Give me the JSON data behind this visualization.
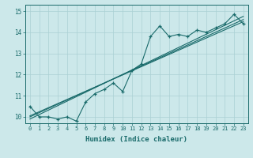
{
  "title": "",
  "xlabel": "Humidex (Indice chaleur)",
  "ylabel": "",
  "xlim": [
    -0.5,
    23.5
  ],
  "ylim": [
    9.7,
    15.3
  ],
  "yticks": [
    10,
    11,
    12,
    13,
    14,
    15
  ],
  "xticks": [
    0,
    1,
    2,
    3,
    4,
    5,
    6,
    7,
    8,
    9,
    10,
    11,
    12,
    13,
    14,
    15,
    16,
    17,
    18,
    19,
    20,
    21,
    22,
    23
  ],
  "bg_color": "#cce8ea",
  "grid_color": "#aad0d4",
  "line_color": "#1a6b6b",
  "data_line": [
    10.5,
    10.0,
    10.0,
    9.9,
    10.0,
    9.8,
    10.7,
    11.1,
    11.3,
    11.6,
    11.2,
    12.2,
    12.5,
    13.8,
    14.3,
    13.8,
    13.9,
    13.8,
    14.1,
    14.0,
    14.2,
    14.4,
    14.85,
    14.4
  ],
  "regression_line1_x": [
    0,
    23
  ],
  "regression_line1_y": [
    10.0,
    14.6
  ],
  "regression_line2_x": [
    0,
    23
  ],
  "regression_line2_y": [
    9.9,
    14.75
  ],
  "regression_line3_x": [
    0,
    23
  ],
  "regression_line3_y": [
    10.05,
    14.5
  ]
}
